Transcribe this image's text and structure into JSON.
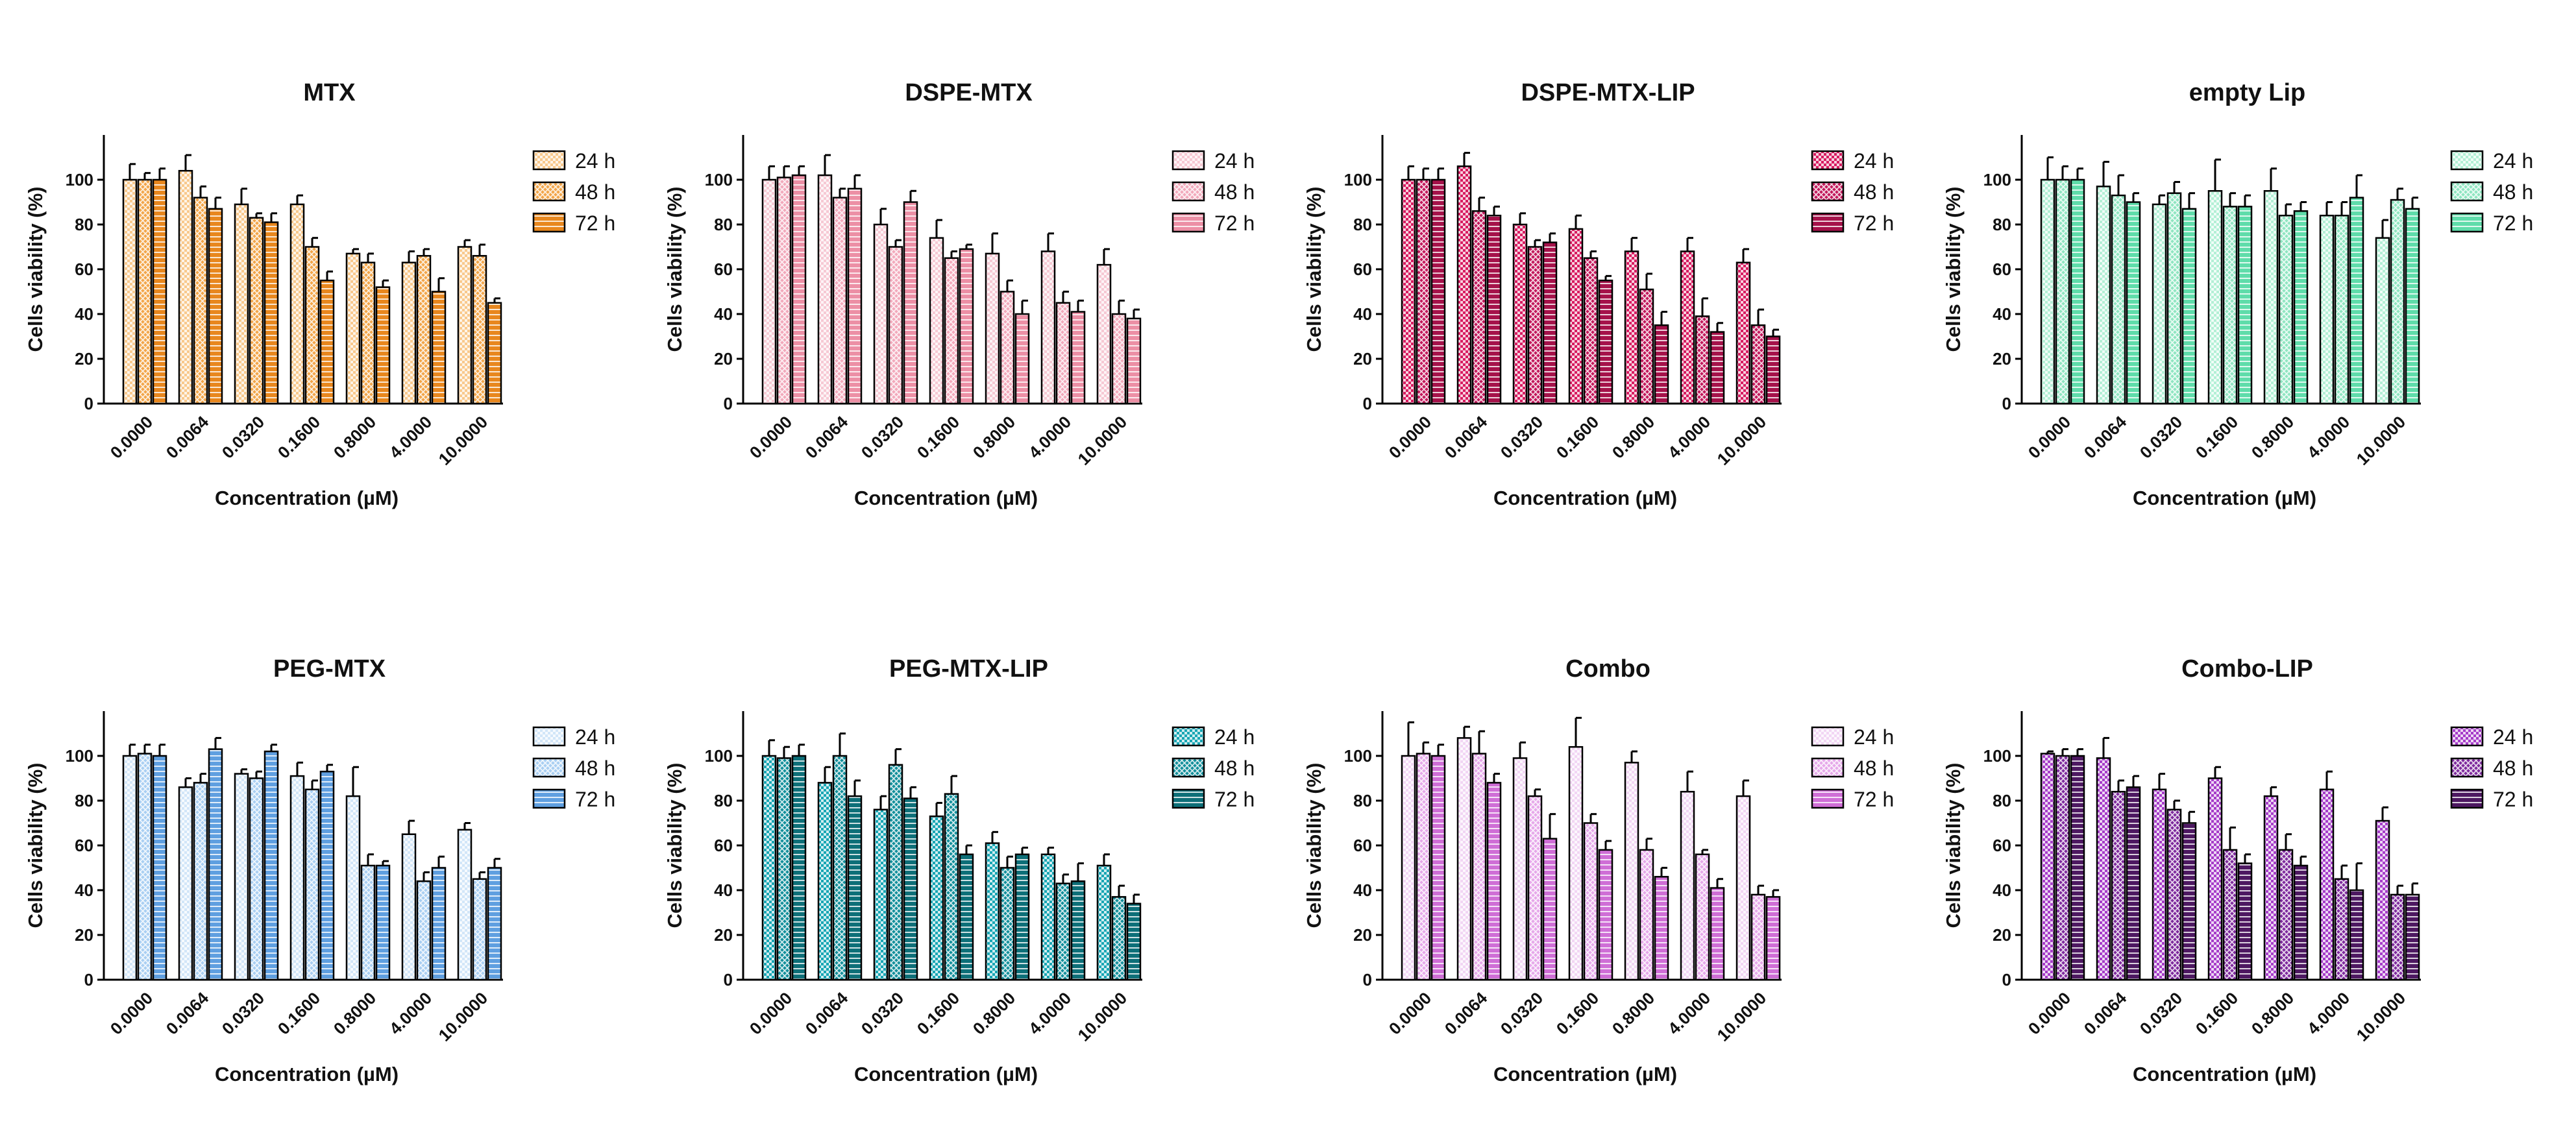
{
  "chart_data": [
    {
      "type": "bar",
      "title": "MTX",
      "xlabel": "Concentration (µM)",
      "ylabel": "Cells viability (%)",
      "ylim": [
        0,
        120
      ],
      "yticks": [
        0,
        20,
        40,
        60,
        80,
        100
      ],
      "categories": [
        "0.0000",
        "0.0064",
        "0.0320",
        "0.1600",
        "0.8000",
        "4.0000",
        "10.0000"
      ],
      "colors": [
        "#f8c98d",
        "#f2a64a",
        "#e8871e"
      ],
      "pattern": "checker",
      "series": [
        {
          "name": "24 h",
          "values": [
            100,
            104,
            89,
            89,
            67,
            63,
            70
          ],
          "errors": [
            7,
            7,
            7,
            4,
            2,
            5,
            3
          ]
        },
        {
          "name": "48 h",
          "values": [
            100,
            92,
            83,
            70,
            63,
            66,
            66
          ],
          "errors": [
            3,
            5,
            2,
            4,
            4,
            3,
            5
          ]
        },
        {
          "name": "72 h",
          "values": [
            100,
            87,
            81,
            55,
            52,
            50,
            45
          ],
          "errors": [
            5,
            5,
            4,
            4,
            3,
            6,
            2
          ]
        }
      ]
    },
    {
      "type": "bar",
      "title": "DSPE-MTX",
      "xlabel": "Concentration (µM)",
      "ylabel": "Cells viability (%)",
      "ylim": [
        0,
        120
      ],
      "yticks": [
        0,
        20,
        40,
        60,
        80,
        100
      ],
      "categories": [
        "0.0000",
        "0.0064",
        "0.0320",
        "0.1600",
        "0.8000",
        "4.0000",
        "10.0000"
      ],
      "colors": [
        "#f6c9d4",
        "#f2a9bb",
        "#ec8fa5"
      ],
      "pattern": "checker",
      "series": [
        {
          "name": "24 h",
          "values": [
            100,
            102,
            80,
            74,
            67,
            68,
            62
          ],
          "errors": [
            6,
            9,
            7,
            8,
            9,
            8,
            7
          ]
        },
        {
          "name": "48 h",
          "values": [
            101,
            92,
            70,
            65,
            50,
            45,
            40
          ],
          "errors": [
            5,
            4,
            3,
            3,
            5,
            5,
            6
          ]
        },
        {
          "name": "72 h",
          "values": [
            102,
            96,
            90,
            69,
            40,
            41,
            38
          ],
          "errors": [
            4,
            6,
            5,
            2,
            6,
            5,
            4
          ]
        }
      ]
    },
    {
      "type": "bar",
      "title": "DSPE-MTX-LIP",
      "xlabel": "Concentration (µM)",
      "ylabel": "Cells viability (%)",
      "ylim": [
        0,
        120
      ],
      "yticks": [
        0,
        20,
        40,
        60,
        80,
        100
      ],
      "categories": [
        "0.0000",
        "0.0064",
        "0.0320",
        "0.1600",
        "0.8000",
        "4.0000",
        "10.0000"
      ],
      "colors": [
        "#d81b60",
        "#c2185b",
        "#a5124a"
      ],
      "pattern": "checker",
      "series": [
        {
          "name": "24 h",
          "values": [
            100,
            106,
            80,
            78,
            68,
            68,
            63
          ],
          "errors": [
            6,
            6,
            5,
            6,
            6,
            6,
            6
          ]
        },
        {
          "name": "48 h",
          "values": [
            100,
            86,
            70,
            65,
            51,
            39,
            35
          ],
          "errors": [
            5,
            6,
            3,
            3,
            7,
            8,
            7
          ]
        },
        {
          "name": "72 h",
          "values": [
            100,
            84,
            72,
            55,
            35,
            32,
            30
          ],
          "errors": [
            5,
            4,
            4,
            2,
            6,
            4,
            3
          ]
        }
      ]
    },
    {
      "type": "bar",
      "title": "empty Lip",
      "xlabel": "Concentration (µM)",
      "ylabel": "Cells viability (%)",
      "ylim": [
        0,
        120
      ],
      "yticks": [
        0,
        20,
        40,
        60,
        80,
        100
      ],
      "categories": [
        "0.0000",
        "0.0064",
        "0.0320",
        "0.1600",
        "0.8000",
        "4.0000",
        "10.0000"
      ],
      "colors": [
        "#b3f0d6",
        "#8fe6c1",
        "#5fdcaa"
      ],
      "pattern": "checker",
      "series": [
        {
          "name": "24 h",
          "values": [
            100,
            97,
            89,
            95,
            95,
            84,
            74
          ],
          "errors": [
            10,
            11,
            4,
            14,
            10,
            6,
            8
          ]
        },
        {
          "name": "48 h",
          "values": [
            100,
            93,
            94,
            88,
            84,
            84,
            91
          ],
          "errors": [
            6,
            9,
            5,
            6,
            5,
            6,
            5
          ]
        },
        {
          "name": "72 h",
          "values": [
            100,
            90,
            87,
            88,
            86,
            92,
            87
          ],
          "errors": [
            5,
            4,
            7,
            5,
            4,
            10,
            5
          ]
        }
      ]
    },
    {
      "type": "bar",
      "title": "PEG-MTX",
      "xlabel": "Concentration (µM)",
      "ylabel": "Cells viability (%)",
      "ylim": [
        0,
        120
      ],
      "yticks": [
        0,
        20,
        40,
        60,
        80,
        100
      ],
      "categories": [
        "0.0000",
        "0.0064",
        "0.0320",
        "0.1600",
        "0.8000",
        "4.0000",
        "10.0000"
      ],
      "colors": [
        "#d2e6f8",
        "#a9cff2",
        "#5f9fe0"
      ],
      "pattern": "checker",
      "series": [
        {
          "name": "24 h",
          "values": [
            100,
            86,
            92,
            91,
            82,
            65,
            67
          ],
          "errors": [
            5,
            4,
            2,
            6,
            13,
            6,
            3
          ]
        },
        {
          "name": "48 h",
          "values": [
            101,
            88,
            90,
            85,
            51,
            44,
            45
          ],
          "errors": [
            4,
            4,
            3,
            4,
            5,
            4,
            3
          ]
        },
        {
          "name": "72 h",
          "values": [
            100,
            103,
            102,
            93,
            51,
            50,
            50
          ],
          "errors": [
            5,
            5,
            3,
            3,
            2,
            5,
            4
          ]
        }
      ]
    },
    {
      "type": "bar",
      "title": "PEG-MTX-LIP",
      "xlabel": "Concentration (µM)",
      "ylabel": "Cells viability (%)",
      "ylim": [
        0,
        120
      ],
      "yticks": [
        0,
        20,
        40,
        60,
        80,
        100
      ],
      "categories": [
        "0.0000",
        "0.0064",
        "0.0320",
        "0.1600",
        "0.8000",
        "4.0000",
        "10.0000"
      ],
      "colors": [
        "#18a6b4",
        "#138f9b",
        "#0d6f78"
      ],
      "pattern": "checker",
      "series": [
        {
          "name": "24 h",
          "values": [
            100,
            88,
            76,
            73,
            61,
            56,
            51
          ],
          "errors": [
            7,
            7,
            6,
            6,
            5,
            3,
            5
          ]
        },
        {
          "name": "48 h",
          "values": [
            99,
            100,
            96,
            83,
            50,
            43,
            37
          ],
          "errors": [
            5,
            10,
            7,
            8,
            5,
            4,
            5
          ]
        },
        {
          "name": "72 h",
          "values": [
            100,
            82,
            81,
            56,
            56,
            44,
            34
          ],
          "errors": [
            5,
            7,
            5,
            4,
            3,
            8,
            4
          ]
        }
      ]
    },
    {
      "type": "bar",
      "title": "Combo",
      "xlabel": "Concentration (µM)",
      "ylabel": "Cells viability (%)",
      "ylim": [
        0,
        120
      ],
      "yticks": [
        0,
        20,
        40,
        60,
        80,
        100
      ],
      "categories": [
        "0.0000",
        "0.0064",
        "0.0320",
        "0.1600",
        "0.8000",
        "4.0000",
        "10.0000"
      ],
      "colors": [
        "#f2d6f4",
        "#e6a8ea",
        "#cf6ed6"
      ],
      "pattern": "checker",
      "series": [
        {
          "name": "24 h",
          "values": [
            100,
            108,
            99,
            104,
            97,
            84,
            82
          ],
          "errors": [
            15,
            5,
            7,
            13,
            5,
            9,
            7
          ]
        },
        {
          "name": "48 h",
          "values": [
            101,
            101,
            82,
            70,
            58,
            56,
            38
          ],
          "errors": [
            5,
            10,
            3,
            4,
            5,
            2,
            4
          ]
        },
        {
          "name": "72 h",
          "values": [
            100,
            88,
            63,
            58,
            46,
            41,
            37
          ],
          "errors": [
            5,
            4,
            11,
            4,
            4,
            4,
            3
          ]
        }
      ]
    },
    {
      "type": "bar",
      "title": "Combo-LIP",
      "xlabel": "Concentration (µM)",
      "ylabel": "Cells viability (%)",
      "ylim": [
        0,
        120
      ],
      "yticks": [
        0,
        20,
        40,
        60,
        80,
        100
      ],
      "categories": [
        "0.0000",
        "0.0064",
        "0.0320",
        "0.1600",
        "0.8000",
        "4.0000",
        "10.0000"
      ],
      "colors": [
        "#a63cc9",
        "#7e2a9d",
        "#4d1861"
      ],
      "pattern": "checker",
      "series": [
        {
          "name": "24 h",
          "values": [
            101,
            99,
            85,
            90,
            82,
            85,
            71
          ],
          "errors": [
            1,
            9,
            7,
            5,
            4,
            8,
            6
          ]
        },
        {
          "name": "48 h",
          "values": [
            100,
            84,
            76,
            58,
            58,
            45,
            38
          ],
          "errors": [
            3,
            5,
            4,
            10,
            7,
            6,
            4
          ]
        },
        {
          "name": "72 h",
          "values": [
            100,
            86,
            70,
            52,
            51,
            40,
            38
          ],
          "errors": [
            3,
            5,
            5,
            4,
            4,
            12,
            5
          ]
        }
      ]
    }
  ]
}
